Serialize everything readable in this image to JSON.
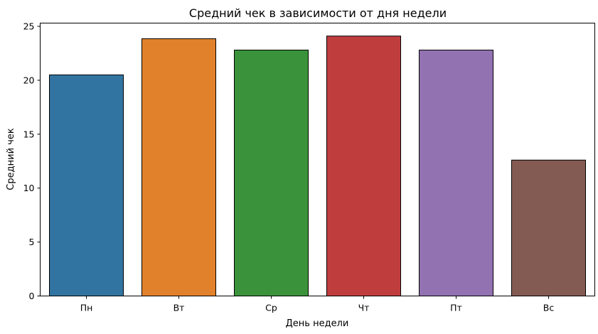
{
  "chart_data": {
    "type": "bar",
    "title": "Средний чек в зависимости от дня недели",
    "xlabel": "День недели",
    "ylabel": "Средний чек",
    "categories": [
      "Пн",
      "Вт",
      "Ср",
      "Чт",
      "Пт",
      "Вс"
    ],
    "values": [
      20.5,
      23.85,
      22.8,
      24.1,
      22.8,
      12.6
    ],
    "colors": [
      "#3274a1",
      "#e1812c",
      "#3a923a",
      "#c03d3e",
      "#9372b2",
      "#845b53"
    ],
    "ylim": [
      0,
      25.3
    ],
    "yticks": [
      0,
      5,
      10,
      15,
      20,
      25
    ],
    "grid": false,
    "legend": false
  }
}
